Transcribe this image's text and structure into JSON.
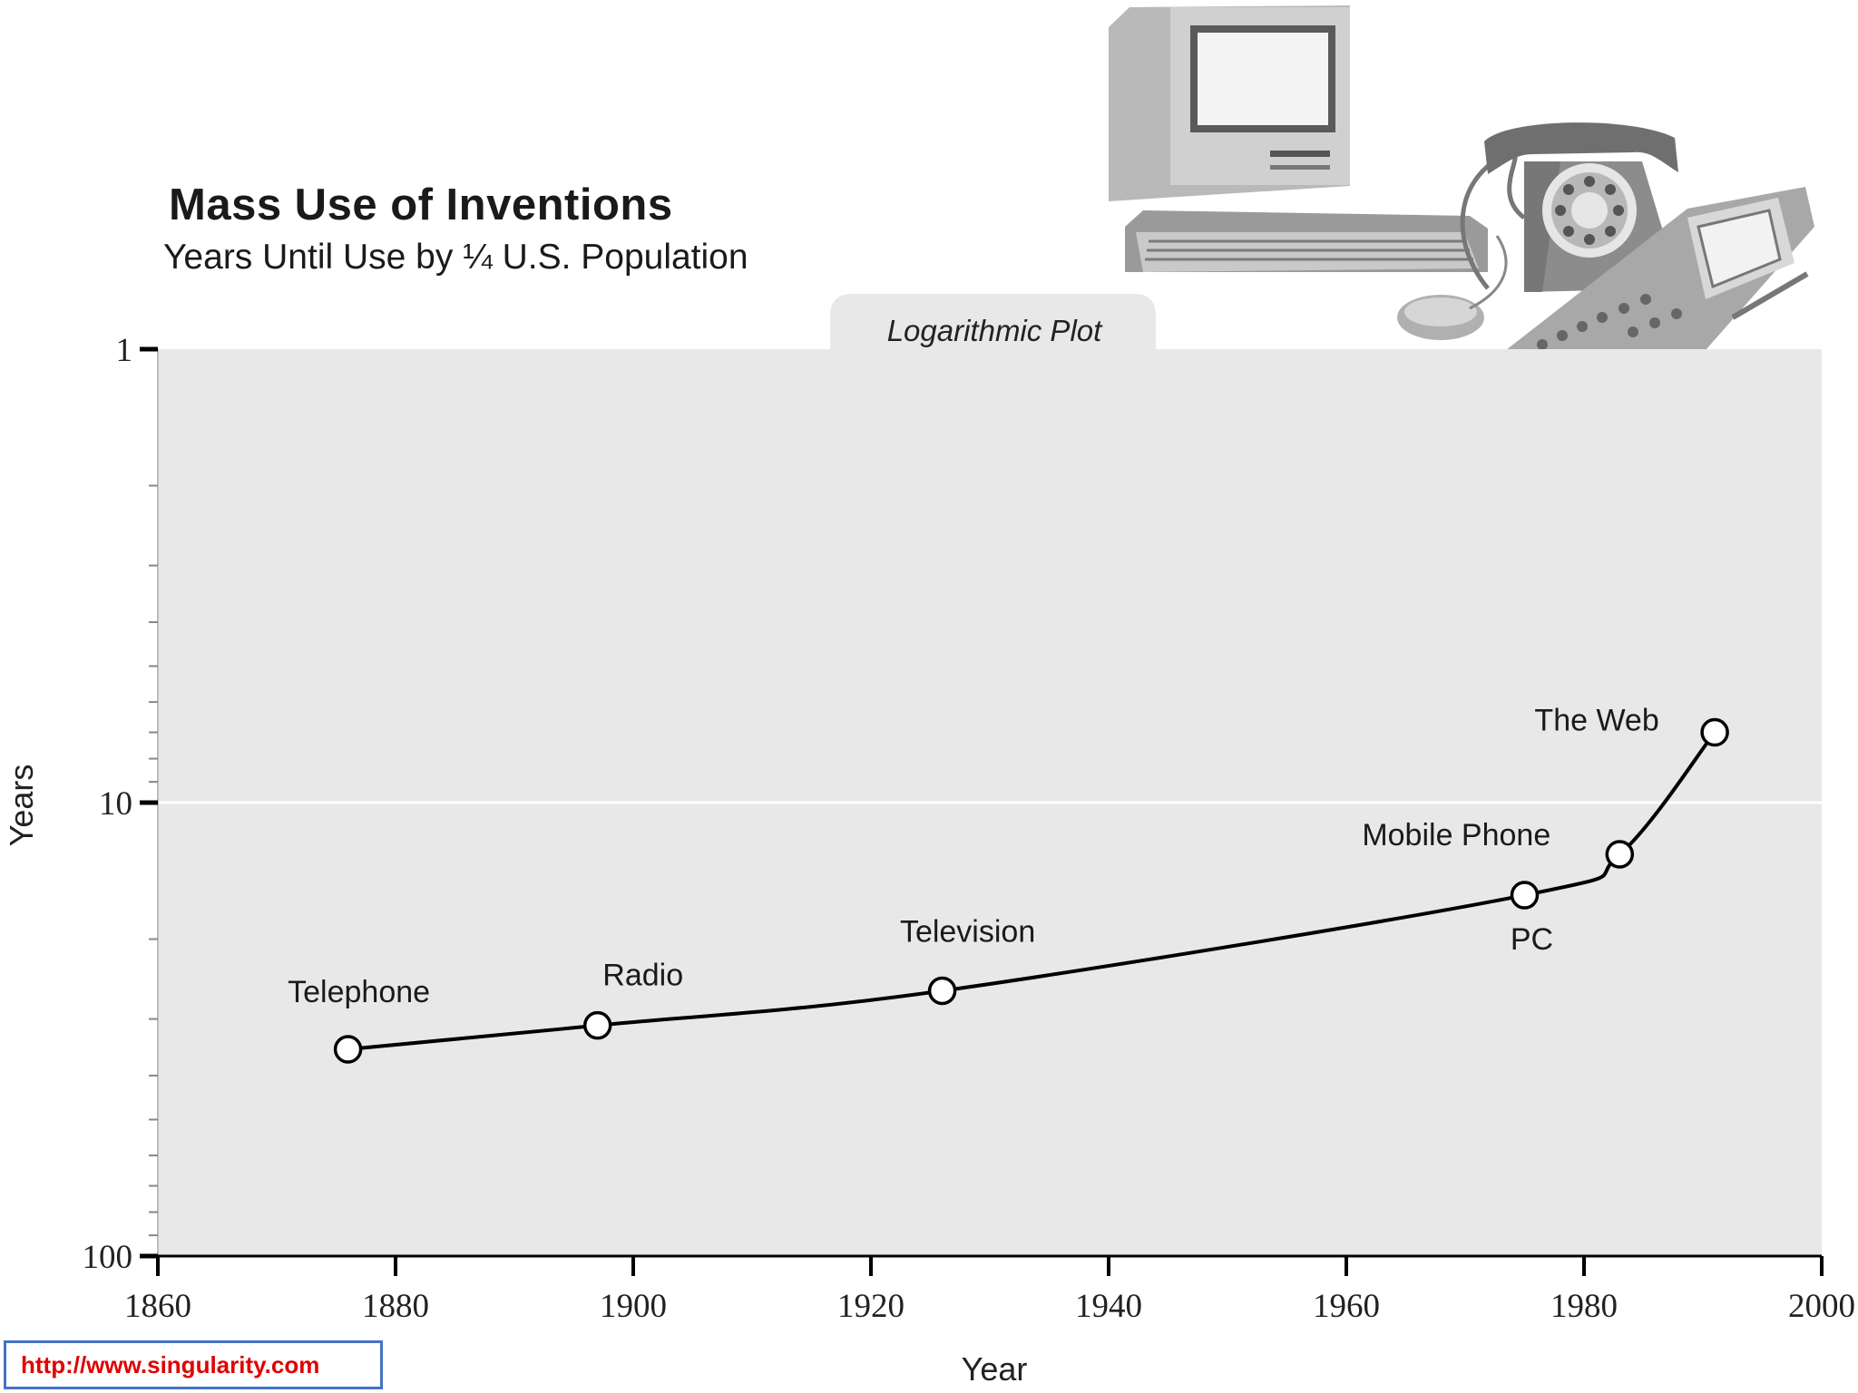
{
  "chart_data": {
    "type": "line",
    "title": "Mass Use of Inventions",
    "subtitle": "Years Until Use by ¼ U.S. Population",
    "plot_tag": "Logarithmic Plot",
    "xlabel": "Year",
    "ylabel": "Years",
    "xlim": [
      1860,
      2000
    ],
    "ylim": [
      1,
      100
    ],
    "y_scale": "log",
    "y_inverted": true,
    "x_ticks": [
      1860,
      1880,
      1900,
      1920,
      1940,
      1960,
      1980,
      2000
    ],
    "y_ticks": [
      1,
      10,
      100
    ],
    "grid": "y at 10",
    "points": [
      {
        "label": "Telephone",
        "x": 1876,
        "y": 35
      },
      {
        "label": "Radio",
        "x": 1897,
        "y": 31
      },
      {
        "label": "Television",
        "x": 1926,
        "y": 26
      },
      {
        "label": "PC",
        "x": 1975,
        "y": 16
      },
      {
        "label": "Mobile Phone",
        "x": 1983,
        "y": 13
      },
      {
        "label": "The Web",
        "x": 1991,
        "y": 7
      }
    ],
    "colors": {
      "plot_background": "#e8e8e8",
      "line": "#000000",
      "marker_fill": "#ffffff"
    }
  },
  "source": {
    "url": "http://www.singularity.com"
  },
  "illustration": {
    "icons": [
      "computer-icon",
      "telephone-icon",
      "mobile-phone-icon"
    ]
  }
}
